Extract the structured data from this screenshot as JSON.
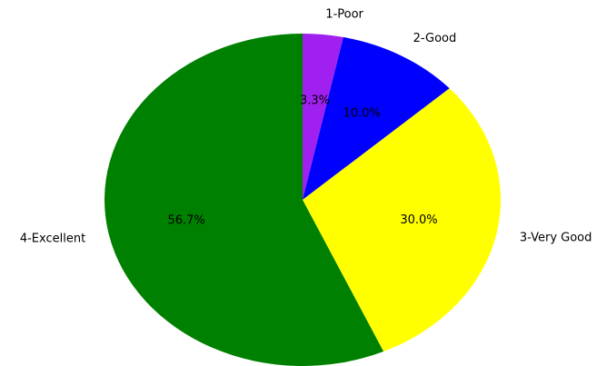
{
  "chart_data": {
    "type": "pie",
    "categories": [
      "1-Poor",
      "2-Good",
      "3-Very Good",
      "4-Excellent"
    ],
    "values": [
      3.3,
      10.0,
      30.0,
      56.7
    ],
    "value_labels": [
      "3.3%",
      "10.0%",
      "30.0%",
      "56.7%"
    ],
    "colors": [
      "#a020f0",
      "#0000ff",
      "#ffff00",
      "#008000"
    ],
    "start_angle_deg": 90,
    "direction": "clockwise",
    "title": ""
  }
}
